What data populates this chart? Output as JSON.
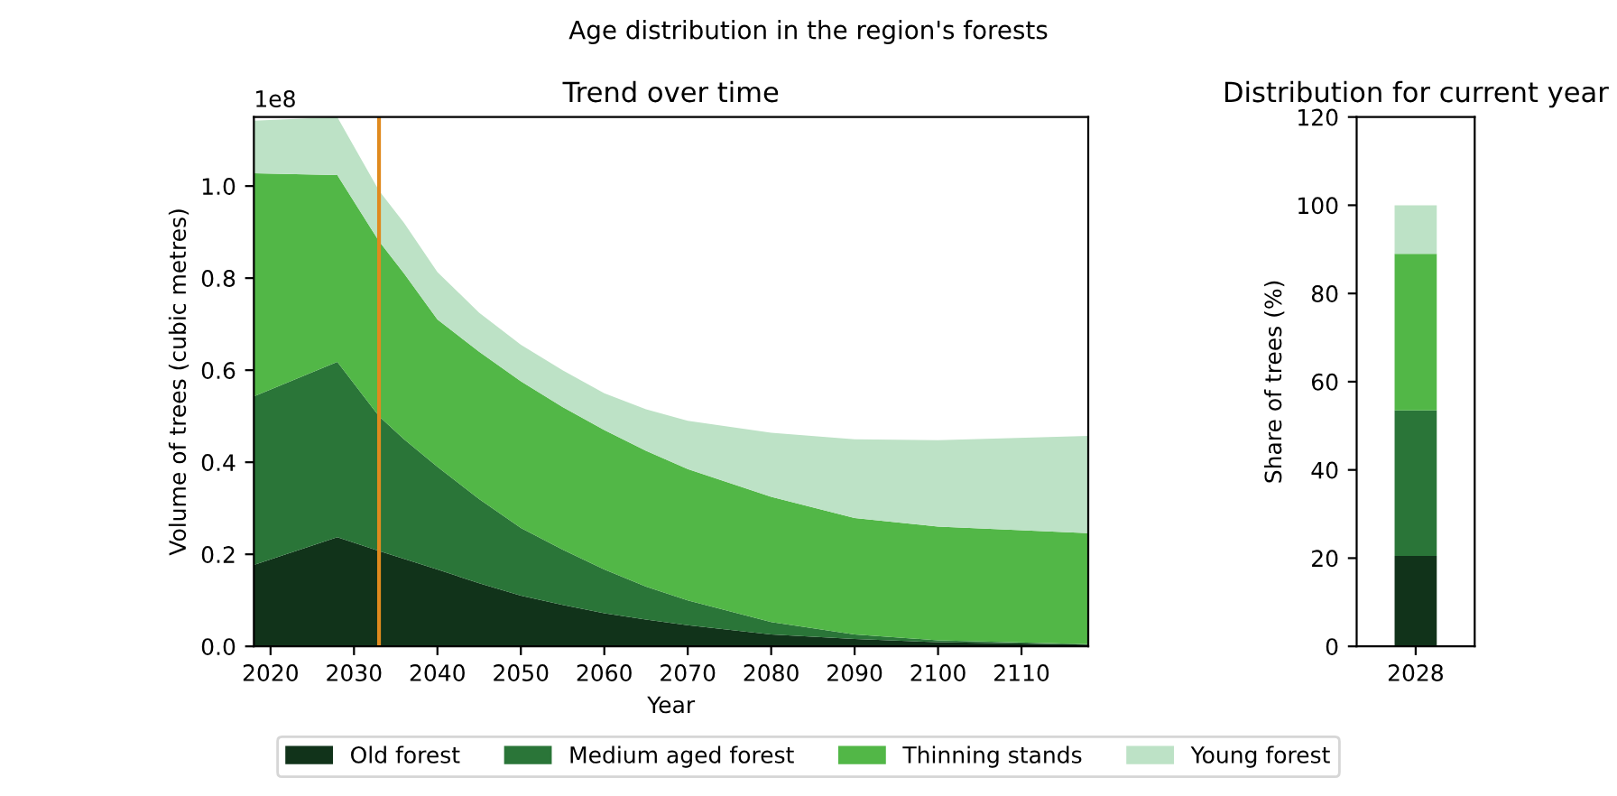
{
  "chart_data": [
    {
      "type": "area",
      "stacked": true,
      "title": "Age distribution in the region's forests",
      "subtitle": "Trend over time",
      "xlabel": "Year",
      "ylabel": "Volume of trees (cubic metres)",
      "x": [
        2018,
        2028,
        2033,
        2036,
        2040,
        2045,
        2050,
        2055,
        2060,
        2065,
        2070,
        2080,
        2090,
        2100,
        2118
      ],
      "series": [
        {
          "name": "Old forest",
          "color": "#11331a",
          "values": [
            0.177,
            0.237,
            0.207,
            0.19,
            0.167,
            0.137,
            0.11,
            0.09,
            0.072,
            0.058,
            0.046,
            0.026,
            0.016,
            0.009,
            0.004
          ]
        },
        {
          "name": "Medium aged forest",
          "color": "#2a7538",
          "values": [
            0.366,
            0.381,
            0.293,
            0.26,
            0.223,
            0.183,
            0.147,
            0.12,
            0.095,
            0.072,
            0.054,
            0.027,
            0.01,
            0.004,
            0.001
          ]
        },
        {
          "name": "Thinning stands",
          "color": "#52b747",
          "values": [
            0.485,
            0.406,
            0.38,
            0.36,
            0.32,
            0.32,
            0.319,
            0.31,
            0.303,
            0.295,
            0.285,
            0.272,
            0.253,
            0.247,
            0.241
          ]
        },
        {
          "name": "Young forest",
          "color": "#bde2c6",
          "values": [
            0.114,
            0.126,
            0.11,
            0.11,
            0.103,
            0.085,
            0.079,
            0.08,
            0.08,
            0.09,
            0.105,
            0.139,
            0.171,
            0.188,
            0.211
          ]
        }
      ],
      "xlim": [
        2018,
        2118
      ],
      "xticks": [
        2020,
        2030,
        2040,
        2050,
        2060,
        2070,
        2080,
        2090,
        2100,
        2110
      ],
      "ylim": [
        0,
        1.15
      ],
      "yticks": [
        {
          "value": 0,
          "label": "0.0"
        },
        0.2,
        0.4,
        0.6,
        0.8,
        {
          "value": 1,
          "label": "1.0"
        }
      ],
      "annotations": [
        "1e8"
      ],
      "ref_lines": [
        {
          "axis": "x",
          "value": 2033,
          "color": "#e08a1e"
        }
      ],
      "legend": "bottom",
      "grid": false
    },
    {
      "type": "bar",
      "stacked": true,
      "title": "Distribution for current year",
      "ylabel": "Share of trees (%)",
      "categories": [
        "2028"
      ],
      "series": [
        {
          "color": "#11331a",
          "values": [
            20.5
          ]
        },
        {
          "color": "#2a7538",
          "values": [
            33
          ]
        },
        {
          "color": "#52b747",
          "values": [
            35.5
          ]
        },
        {
          "color": "#bde2c6",
          "values": [
            11
          ]
        }
      ],
      "ylim": [
        0,
        120
      ],
      "yticks": [
        0,
        20,
        40,
        60,
        80,
        100,
        120
      ],
      "grid": false
    }
  ]
}
